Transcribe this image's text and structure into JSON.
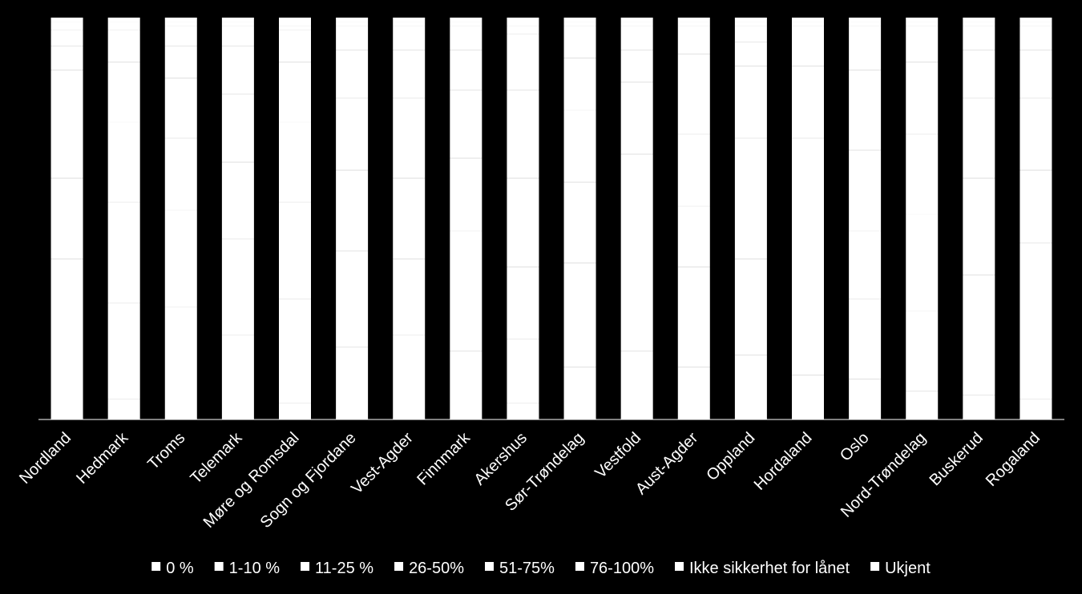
{
  "chart_data": {
    "type": "stacked_bar",
    "categories": [
      "Nordland",
      "Hedmark",
      "Troms",
      "Telemark",
      "Møre og Romsdal",
      "Sogn og Fjordane",
      "Vest-Agder",
      "Finnmark",
      "Akershus",
      "Sør-Trøndelag",
      "Vestfold",
      "Aust-Agder",
      "Oppland",
      "Hordaland",
      "Oslo",
      "Nord-Trøndelag",
      "Buskerud",
      "Rogaland"
    ],
    "ylim": [
      0,
      100
    ],
    "series": [
      {
        "name": "0 %",
        "color": "#ffffff",
        "values": [
          40,
          5,
          28,
          21,
          4,
          18,
          21,
          17,
          4,
          13,
          17,
          13,
          16,
          11,
          10,
          7,
          6,
          5
        ]
      },
      {
        "name": "1-10 %",
        "color": "#ffffff",
        "values": [
          20,
          24,
          24,
          24,
          26,
          24,
          19,
          30,
          16,
          26,
          33,
          25,
          24,
          14,
          20,
          20,
          30,
          39
        ]
      },
      {
        "name": "11-25 %",
        "color": "#ffffff",
        "values": [
          15,
          25,
          18,
          19,
          24,
          20,
          20,
          18,
          18,
          20,
          16,
          15,
          30,
          25,
          17,
          24,
          24,
          18
        ]
      },
      {
        "name": "26-50%",
        "color": "#ffffff",
        "values": [
          12,
          20,
          15,
          17,
          20,
          18,
          20,
          17,
          22,
          18,
          18,
          18,
          18,
          20,
          20,
          20,
          20,
          18
        ]
      },
      {
        "name": "51-75%",
        "color": "#ffffff",
        "values": [
          6,
          15,
          8,
          12,
          15,
          12,
          12,
          10,
          22,
          13,
          8,
          20,
          6,
          18,
          20,
          18,
          12,
          12
        ]
      },
      {
        "name": "76-100%",
        "color": "#ffffff",
        "values": [
          4,
          8,
          5,
          5,
          8,
          6,
          6,
          6,
          14,
          8,
          6,
          7,
          4,
          10,
          11,
          9,
          6,
          6
        ]
      },
      {
        "name": "Ikke sikkerhet for lånet",
        "color": "#ffffff",
        "values": [
          2,
          2,
          1,
          1,
          1,
          1,
          1,
          1,
          2,
          1,
          1,
          1,
          1,
          1,
          1,
          1,
          1,
          1
        ]
      },
      {
        "name": "Ukjent",
        "color": "#ffffff",
        "values": [
          1,
          1,
          1,
          1,
          2,
          1,
          1,
          1,
          2,
          1,
          1,
          1,
          1,
          1,
          1,
          1,
          1,
          1
        ]
      }
    ]
  }
}
